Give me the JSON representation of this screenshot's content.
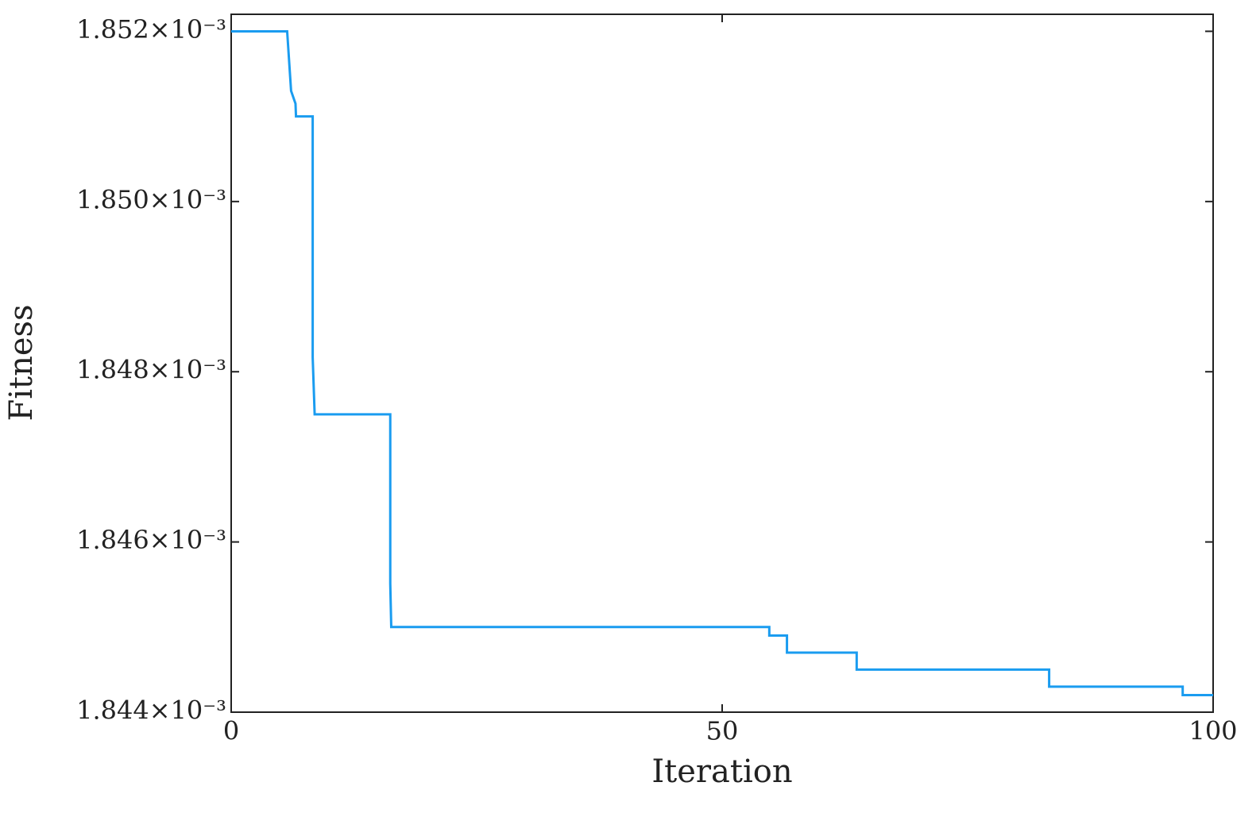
{
  "chart_data": {
    "type": "line",
    "step": true,
    "x_label": "Iteration",
    "y_label": "Fitness",
    "x": [
      0,
      5.7,
      6.1,
      6.55,
      6.6,
      8.3,
      8.3,
      8.5,
      16.2,
      16.2,
      16.3,
      54.8,
      54.8,
      56.6,
      56.6,
      63.7,
      63.7,
      83.3,
      83.3,
      96.9,
      96.9,
      100
    ],
    "values": [
      0.001852,
      0.001852,
      0.0018513,
      0.00185115,
      0.001851,
      0.001851,
      0.00184817,
      0.0018475,
      0.0018475,
      0.00184551,
      0.001845,
      0.001845,
      0.0018449,
      0.0018449,
      0.0018447,
      0.0018447,
      0.0018445,
      0.0018445,
      0.0018443,
      0.0018443,
      0.0018442,
      0.0018442
    ],
    "color": "#1a9cf0",
    "xlim": [
      0,
      100
    ],
    "xticks": [
      0,
      50,
      100
    ],
    "ylim": [
      0.001844,
      0.0018522
    ],
    "yticks": [
      {
        "value": 0.001844,
        "label": "1.844×10⁻³"
      },
      {
        "value": 0.001846,
        "label": "1.846×10⁻³"
      },
      {
        "value": 0.001848,
        "label": "1.848×10⁻³"
      },
      {
        "value": 0.00185,
        "label": "1.850×10⁻³"
      },
      {
        "value": 0.001852,
        "label": "1.852×10⁻³"
      }
    ],
    "grid": false
  }
}
